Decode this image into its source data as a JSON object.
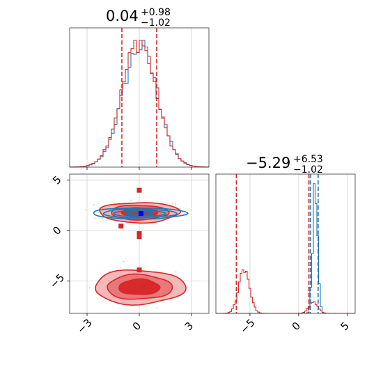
{
  "chart_data": [
    {
      "type": "histogram",
      "panel": "top-left marginal (parameter 1)",
      "title": {
        "value": "0.04",
        "upper": "+0.98",
        "lower": "−1.02"
      },
      "xlim": [
        -4,
        4
      ],
      "grid": true,
      "series": [
        {
          "color": "#1f77b4",
          "center": 0.04,
          "sigma": 1.0
        },
        {
          "color": "#d62728",
          "center": 0.0,
          "sigma": 1.0
        }
      ],
      "quantile_lines": [
        -1.0,
        0.04,
        1.0
      ],
      "line_color": "#d62728"
    },
    {
      "type": "histogram",
      "panel": "bottom-right marginal (parameter 2)",
      "title": {
        "value": "−5.29",
        "upper": "+6.53",
        "lower": "−1.02"
      },
      "xlim": [
        -8.5,
        5.8
      ],
      "grid": true,
      "xticks": [
        -5,
        0,
        5
      ],
      "xtick_labels": [
        "−5",
        "0",
        "5"
      ],
      "series": [
        {
          "color": "#1f77b4",
          "modes": [
            {
              "center": 1.7,
              "sigma": 0.25,
              "height": 1.0
            }
          ]
        },
        {
          "color": "#d62728",
          "modes": [
            {
              "center": -5.6,
              "sigma": 0.55,
              "height": 0.36
            },
            {
              "center": 1.5,
              "sigma": 0.45,
              "height": 0.09
            }
          ]
        }
      ],
      "quantile_lines": [
        {
          "x": -6.4,
          "color": "#d62728"
        },
        {
          "x": 1.05,
          "color": "#d62728"
        },
        {
          "x": 1.2,
          "color": "#1f77b4"
        },
        {
          "x": 2.0,
          "color": "#1f77b4"
        }
      ]
    },
    {
      "type": "contour",
      "panel": "bottom-left 2D joint",
      "xlim": [
        -4,
        4
      ],
      "ylim": [
        -8.2,
        5.6
      ],
      "grid": true,
      "xticks": [
        -3,
        0,
        3
      ],
      "xtick_labels": [
        "−3",
        "0",
        "3"
      ],
      "yticks": [
        -5,
        0,
        5
      ],
      "ytick_labels": [
        "−5",
        "0",
        "5"
      ],
      "red_modes": [
        {
          "cx": 0.0,
          "cy": 1.8,
          "rx": 2.3,
          "ry": 1.0
        },
        {
          "cx": 0.0,
          "cy": -5.6,
          "rx": 2.6,
          "ry": 1.7
        }
      ],
      "blue_mode": {
        "cx": 0.0,
        "cy": 1.7,
        "rx": 2.7,
        "ry": 0.55
      },
      "truth_markers_red": [
        {
          "x": 0.0,
          "y": 4.0
        },
        {
          "x": -1.05,
          "y": 0.45
        },
        {
          "x": 0.0,
          "y": -0.3
        },
        {
          "x": 0.0,
          "y": -0.6
        },
        {
          "x": 0.0,
          "y": -3.9
        },
        {
          "x": 0.2,
          "y": -5.5
        }
      ],
      "truth_marker_blue": {
        "x": 0.1,
        "y": 1.7
      },
      "blue_color": "#1f77b4",
      "red_color": "#d62728"
    }
  ]
}
